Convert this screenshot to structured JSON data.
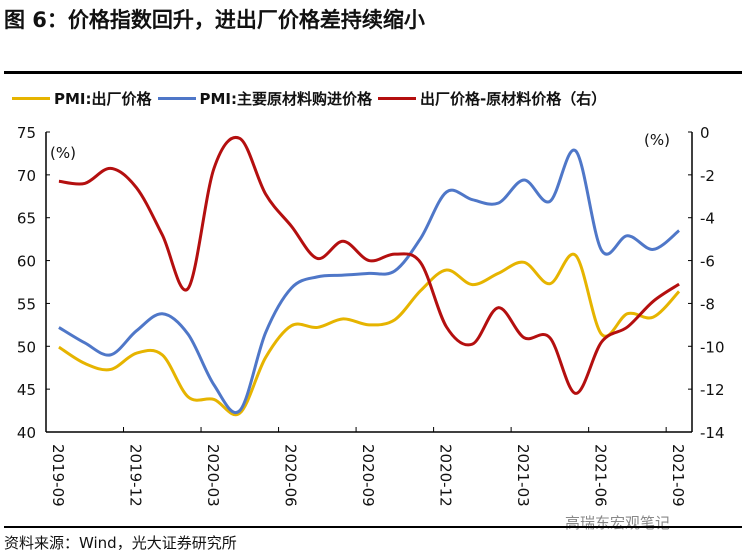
{
  "title": "图 6：价格指数回升，进出厂价格差持续缩小",
  "source": "资料来源：Wind，光大证券研究所",
  "watermark": "高瑞东宏观笔记",
  "chart_data": {
    "type": "line",
    "title": "图 6：价格指数回升，进出厂价格差持续缩小",
    "x": [
      "2019-09",
      "2019-10",
      "2019-11",
      "2019-12",
      "2020-01",
      "2020-02",
      "2020-03",
      "2020-04",
      "2020-05",
      "2020-06",
      "2020-07",
      "2020-08",
      "2020-09",
      "2020-10",
      "2020-11",
      "2020-12",
      "2021-01",
      "2021-02",
      "2021-03",
      "2021-04",
      "2021-05",
      "2021-06",
      "2021-07",
      "2021-08",
      "2021-09"
    ],
    "xtick_labels": [
      "2019-09",
      "2019-12",
      "2020-03",
      "2020-06",
      "2020-09",
      "2020-12",
      "2021-03",
      "2021-06",
      "2021-09"
    ],
    "left_unit": "(%)",
    "right_unit": "(%)",
    "ylim_left": [
      40,
      75
    ],
    "yticks_left": [
      40,
      45,
      50,
      55,
      60,
      65,
      70,
      75
    ],
    "ylim_right": [
      -14,
      0
    ],
    "yticks_right": [
      -14,
      -12,
      -10,
      -8,
      -6,
      -4,
      -2,
      0
    ],
    "grid": false,
    "legend_position": "top",
    "series": [
      {
        "name": "PMI:出厂价格",
        "axis": "left",
        "color": "#E6B400",
        "values": [
          49.9,
          48.0,
          47.3,
          49.2,
          49.0,
          44.1,
          43.8,
          42.2,
          48.7,
          52.4,
          52.2,
          53.2,
          52.5,
          53.1,
          56.5,
          58.9,
          57.2,
          58.5,
          59.8,
          57.3,
          60.6,
          51.4,
          53.8,
          53.4,
          56.4
        ]
      },
      {
        "name": "PMI:主要原材料购进价格",
        "axis": "left",
        "color": "#4F77C8",
        "values": [
          52.2,
          50.4,
          49.0,
          51.8,
          53.8,
          51.4,
          45.5,
          42.5,
          51.6,
          56.8,
          58.1,
          58.3,
          58.5,
          58.8,
          62.6,
          68.0,
          67.1,
          66.7,
          69.4,
          66.9,
          72.8,
          61.2,
          62.9,
          61.3,
          63.5
        ]
      },
      {
        "name": "出厂价格-原材料价格（右）",
        "axis": "right",
        "color": "#B40F0F",
        "values": [
          -2.3,
          -2.4,
          -1.7,
          -2.6,
          -4.8,
          -7.3,
          -1.7,
          -0.3,
          -2.9,
          -4.4,
          -5.9,
          -5.1,
          -6.0,
          -5.7,
          -6.1,
          -9.1,
          -9.9,
          -8.2,
          -9.6,
          -9.6,
          -12.2,
          -9.8,
          -9.1,
          -7.9,
          -7.1
        ]
      }
    ]
  }
}
